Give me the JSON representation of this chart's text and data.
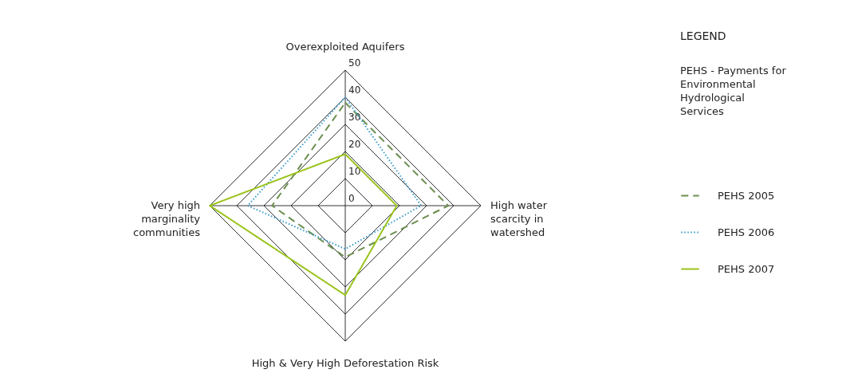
{
  "chart_data": {
    "type": "radar",
    "categories": [
      "Overexploited Aquifers",
      "High water scarcity in watershed",
      "High & Very High Deforestation Risk",
      "Very high marginality communities"
    ],
    "series": [
      {
        "name": "PEHS 2005",
        "color": "#6b8e4e",
        "line_style": "dashed",
        "values": [
          38,
          38,
          19,
          27
        ]
      },
      {
        "name": "PEHS 2006",
        "color": "#3a9ac9",
        "line_style": "dotted",
        "values": [
          40,
          28,
          16,
          36
        ]
      },
      {
        "name": "PEHS 2007",
        "color": "#9ac31c",
        "line_style": "solid",
        "values": [
          19,
          19,
          33,
          50
        ]
      }
    ],
    "ylim": [
      0,
      50
    ],
    "yticks": [
      0,
      10,
      20,
      30,
      40,
      50
    ],
    "grid": true,
    "legend": "right",
    "legend_title": "LEGEND",
    "marker": "none",
    "annotations": [
      "PEHS - Payments for Environmental Hydrological Services"
    ]
  }
}
